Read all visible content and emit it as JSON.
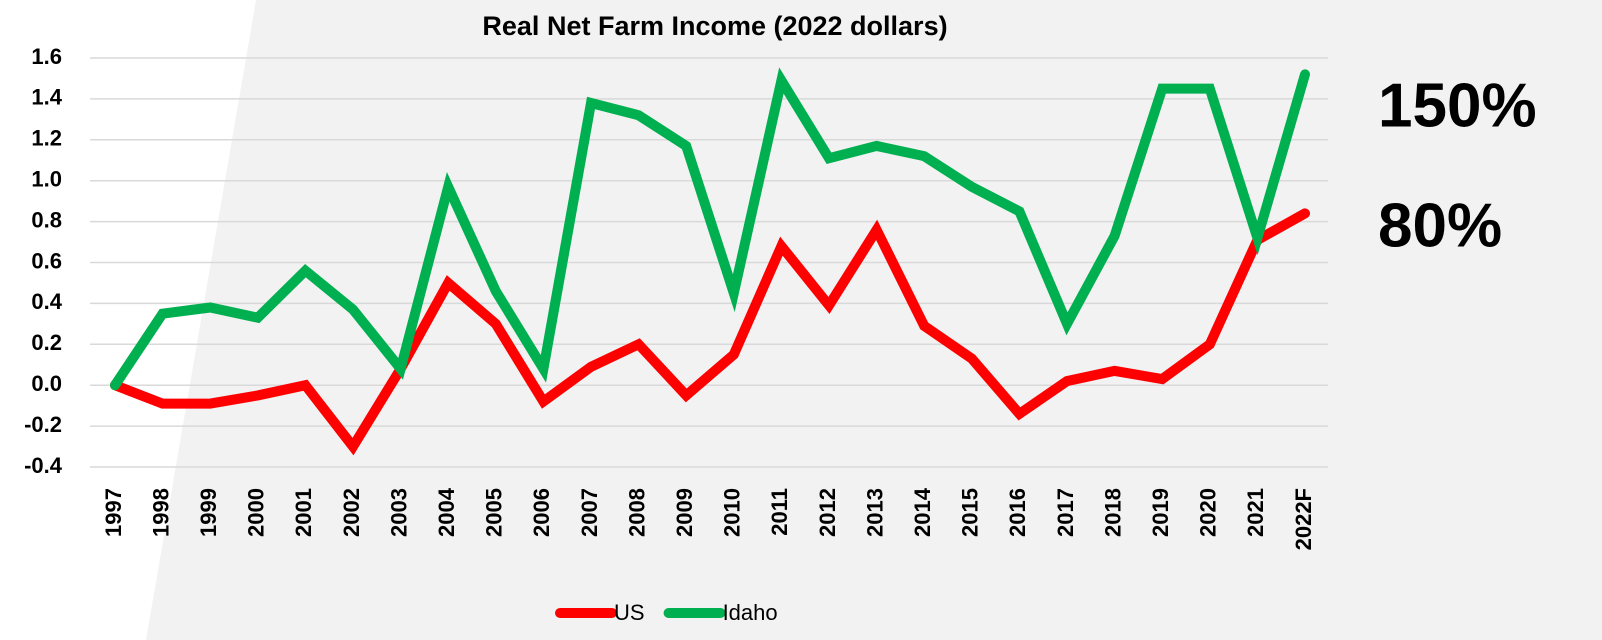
{
  "chart_data": {
    "type": "line",
    "title": "Real Net Farm Income (2022 dollars)",
    "categories": [
      "1997",
      "1998",
      "1999",
      "2000",
      "2001",
      "2002",
      "2003",
      "2004",
      "2005",
      "2006",
      "2007",
      "2008",
      "2009",
      "2010",
      "2011",
      "2012",
      "2013",
      "2014",
      "2015",
      "2016",
      "2017",
      "2018",
      "2019",
      "2020",
      "2021",
      "2022F"
    ],
    "series": [
      {
        "name": "US",
        "color": "#ff0000",
        "values": [
          0,
          -0.09,
          -0.09,
          -0.05,
          0,
          -0.3,
          0.08,
          0.5,
          0.3,
          -0.08,
          0.09,
          0.2,
          -0.05,
          0.15,
          0.68,
          0.39,
          0.76,
          0.29,
          0.13,
          -0.14,
          0.02,
          0.07,
          0.03,
          0.2,
          0.71,
          0.84
        ]
      },
      {
        "name": "Idaho",
        "color": "#00b050",
        "values": [
          0,
          0.35,
          0.38,
          0.33,
          0.56,
          0.37,
          0.08,
          0.97,
          0.46,
          0.08,
          1.38,
          1.32,
          1.17,
          0.45,
          1.49,
          1.11,
          1.17,
          1.12,
          0.97,
          0.85,
          0.3,
          0.73,
          1.45,
          1.45,
          0.72,
          1.52
        ]
      }
    ],
    "ylim": [
      -0.4,
      1.6
    ],
    "yticks": [
      -0.4,
      -0.2,
      {
        "value": 0,
        "label": "0.0"
      },
      0.2,
      0.4,
      0.6,
      0.8,
      {
        "value": 1,
        "label": "1.0"
      },
      1.2,
      1.4,
      1.6
    ],
    "grid": true,
    "legend": "bottom",
    "annotations": [
      "150%",
      "80%"
    ]
  }
}
